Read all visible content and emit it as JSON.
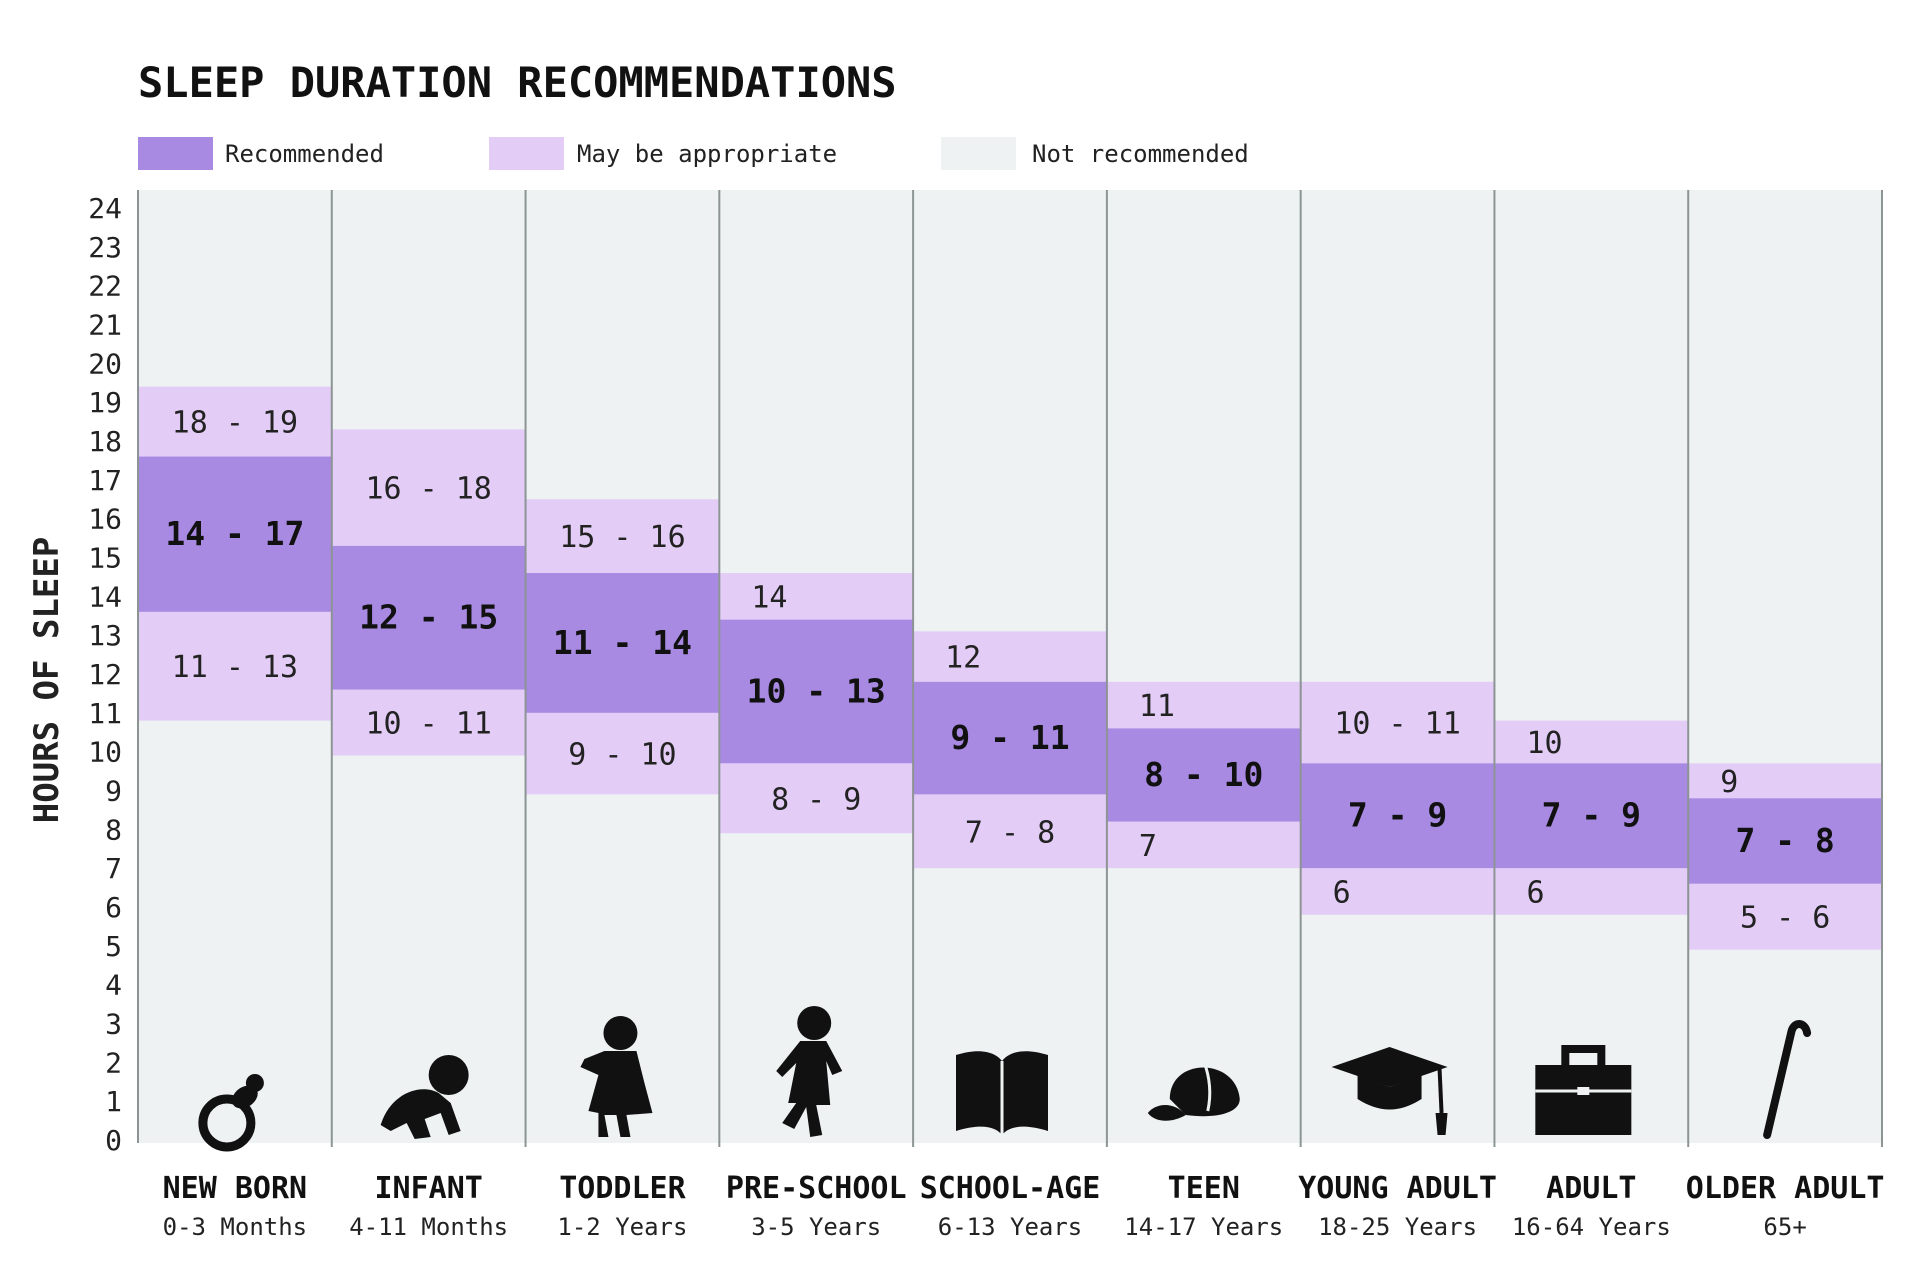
{
  "chart_data": {
    "type": "bar",
    "title": "SLEEP DURATION RECOMMENDATIONS",
    "ylabel": "HOURS OF SLEEP",
    "ylim": [
      0,
      24
    ],
    "y_ticks": [
      "0",
      "1",
      "2",
      "3",
      "4",
      "5",
      "6",
      "7",
      "8",
      "9",
      "10",
      "11",
      "12",
      "13",
      "14",
      "15",
      "16",
      "17",
      "18",
      "19",
      "20",
      "21",
      "22",
      "23",
      "24"
    ],
    "legend": [
      {
        "label": "Recommended",
        "color": "#a98ae3"
      },
      {
        "label": "May be appropriate",
        "color": "#e3cdf7"
      },
      {
        "label": "Not recommended",
        "color": "#eef2f2"
      }
    ],
    "colors": {
      "recommended": "#a98ae3",
      "appropriate": "#e3cdf7",
      "not_recommended": "#eef2f2",
      "divider": "#8c9494"
    },
    "categories": [
      {
        "name": "NEW BORN",
        "age": "0-3 Months",
        "icon": "pacifier-icon",
        "low": {
          "range": [
            10.8,
            13.6
          ],
          "label": "11 - 13"
        },
        "rec": {
          "range": [
            13.6,
            17.6
          ],
          "label": "14 - 17"
        },
        "high": {
          "range": [
            17.6,
            19.4
          ],
          "label": "18 - 19"
        }
      },
      {
        "name": "INFANT",
        "age": "4-11 Months",
        "icon": "crawling-baby-icon",
        "low": {
          "range": [
            9.9,
            11.6
          ],
          "label": "10 - 11"
        },
        "rec": {
          "range": [
            11.6,
            15.3
          ],
          "label": "12 - 15"
        },
        "high": {
          "range": [
            15.3,
            18.3
          ],
          "label": "16 - 18"
        }
      },
      {
        "name": "TODDLER",
        "age": "1-2 Years",
        "icon": "toddler-icon",
        "low": {
          "range": [
            8.9,
            11.0
          ],
          "label": "9 - 10"
        },
        "rec": {
          "range": [
            11.0,
            14.6
          ],
          "label": "11 - 14"
        },
        "high": {
          "range": [
            14.6,
            16.5
          ],
          "label": "15 - 16"
        }
      },
      {
        "name": "PRE-SCHOOL",
        "age": "3-5 Years",
        "icon": "walking-child-icon",
        "low": {
          "range": [
            7.9,
            9.7
          ],
          "label": "8 - 9"
        },
        "rec": {
          "range": [
            9.7,
            13.4
          ],
          "label": "10 - 13"
        },
        "high": {
          "range": [
            13.4,
            14.6
          ],
          "label": "14"
        }
      },
      {
        "name": "SCHOOL-AGE",
        "age": "6-13 Years",
        "icon": "book-icon",
        "low": {
          "range": [
            7.0,
            8.9
          ],
          "label": "7 - 8"
        },
        "rec": {
          "range": [
            8.9,
            11.8
          ],
          "label": "9 - 11"
        },
        "high": {
          "range": [
            11.8,
            13.1
          ],
          "label": "12"
        }
      },
      {
        "name": "TEEN",
        "age": "14-17 Years",
        "icon": "cap-icon",
        "low": {
          "range": [
            7.0,
            8.2
          ],
          "label": "7"
        },
        "rec": {
          "range": [
            8.2,
            10.6
          ],
          "label": "8 - 10"
        },
        "high": {
          "range": [
            10.6,
            11.8
          ],
          "label": "11"
        }
      },
      {
        "name": "YOUNG ADULT",
        "age": "18-25 Years",
        "icon": "graduation-cap-icon",
        "low": {
          "range": [
            5.8,
            7.0
          ],
          "label": "6"
        },
        "rec": {
          "range": [
            7.0,
            9.7
          ],
          "label": "7 - 9"
        },
        "high": {
          "range": [
            9.7,
            11.8
          ],
          "label": "10 - 11"
        }
      },
      {
        "name": "ADULT",
        "age": "16-64 Years",
        "icon": "briefcase-icon",
        "low": {
          "range": [
            5.8,
            7.0
          ],
          "label": "6"
        },
        "rec": {
          "range": [
            7.0,
            9.7
          ],
          "label": "7 - 9"
        },
        "high": {
          "range": [
            9.7,
            10.8
          ],
          "label": "10"
        }
      },
      {
        "name": "OLDER ADULT",
        "age": "65+",
        "icon": "cane-icon",
        "low": {
          "range": [
            4.9,
            6.6
          ],
          "label": "5 - 6"
        },
        "rec": {
          "range": [
            6.6,
            8.8
          ],
          "label": "7 - 8"
        },
        "high": {
          "range": [
            8.8,
            9.7
          ],
          "label": "9"
        }
      }
    ]
  }
}
